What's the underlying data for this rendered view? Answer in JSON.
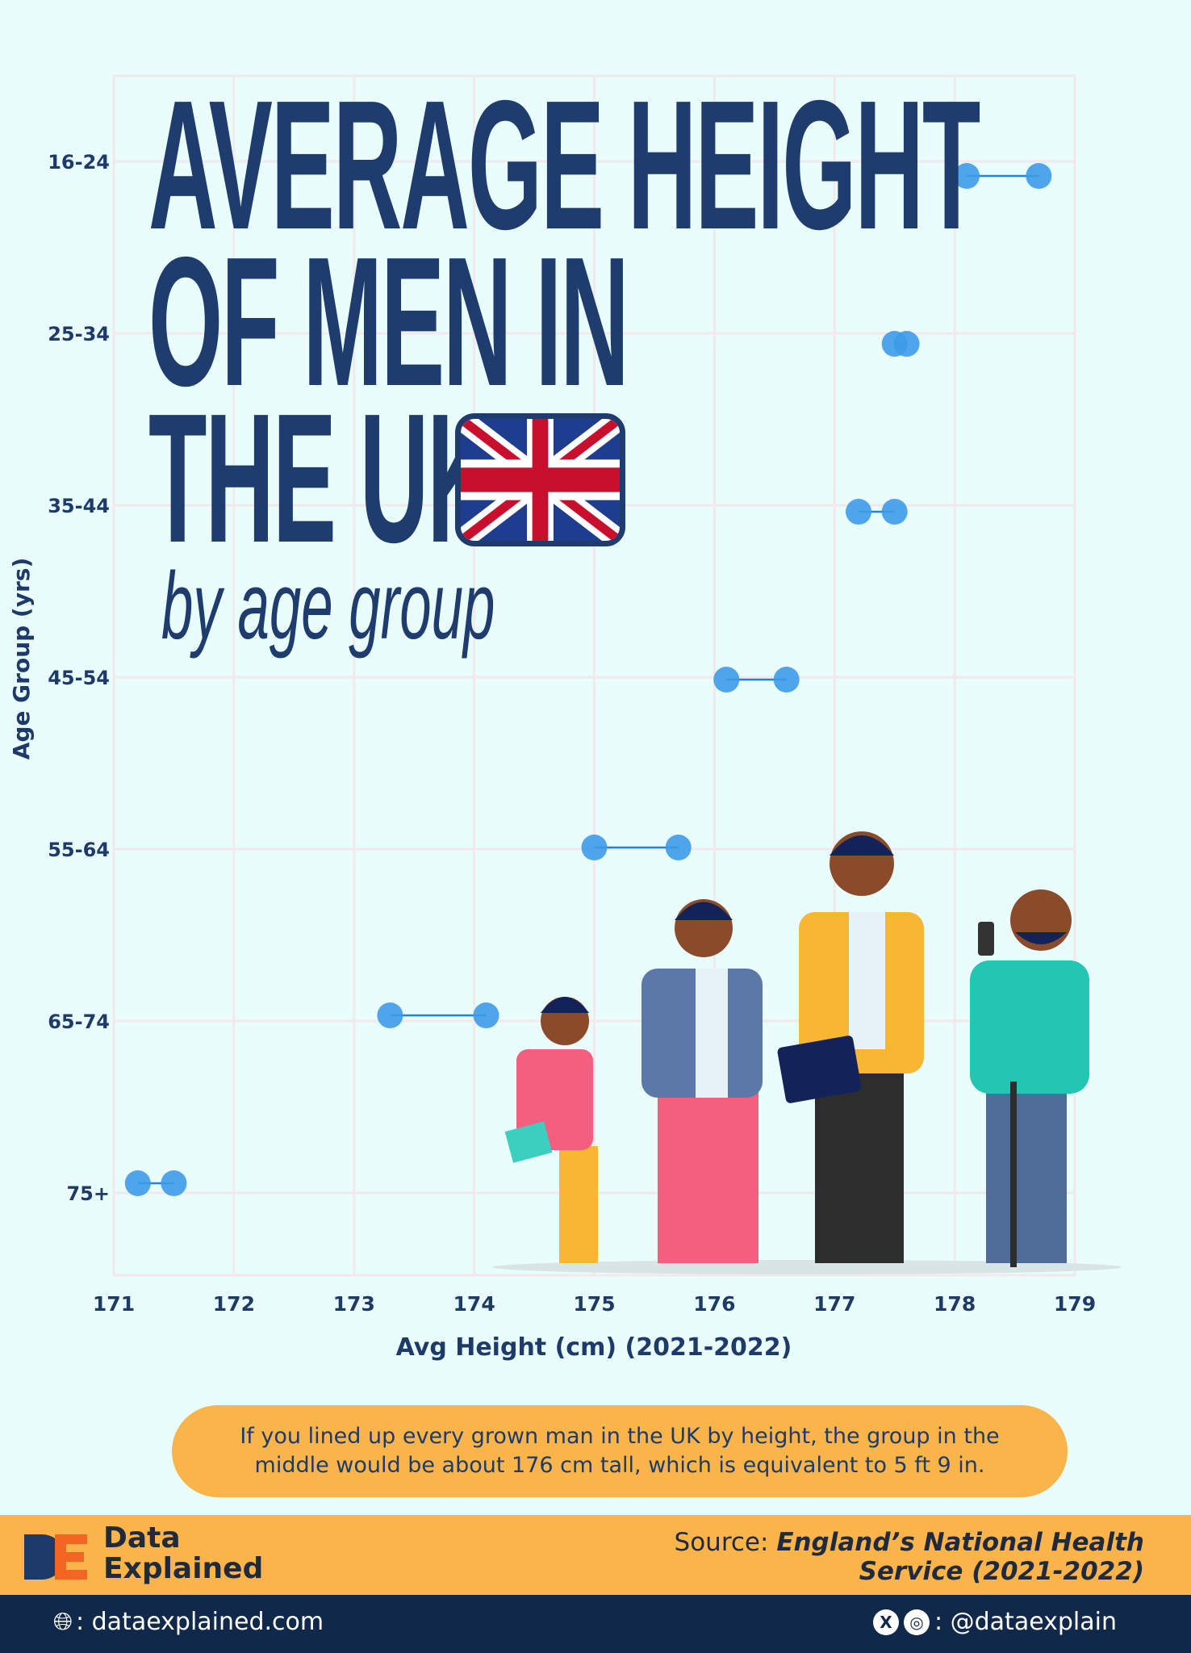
{
  "chart_data": {
    "type": "dumbbell",
    "title": "AVERAGE HEIGHT OF MEN IN THE UK",
    "subtitle": "by age group",
    "xlabel": "Avg Height (cm) (2021-2022)",
    "ylabel": "Age Group (yrs)",
    "xlim": [
      171,
      179
    ],
    "xticks": [
      "171",
      "172",
      "173",
      "174",
      "175",
      "176",
      "177",
      "178",
      "179"
    ],
    "grid": true,
    "color": "#3d9be9",
    "categories": [
      "16-24",
      "25-34",
      "35-44",
      "45-54",
      "55-64",
      "65-74",
      "75+"
    ],
    "low": [
      178.1,
      177.5,
      177.2,
      176.1,
      175.0,
      173.3,
      171.2
    ],
    "high": [
      178.7,
      177.6,
      177.5,
      176.6,
      175.7,
      174.1,
      171.5
    ]
  },
  "title_lines": [
    "AVERAGE HEIGHT",
    "OF MEN IN",
    "THE UK"
  ],
  "callout": "If you lined up every grown man in the UK by height, the group in the middle would be about 176 cm tall, which is equivalent to 5 ft 9 in.",
  "footer": {
    "brand_line1": "Data",
    "brand_line2": "Explained",
    "logo_text": "DE",
    "source_label": "Source:",
    "source_line1": "England’s National Health",
    "source_line2": "Service (2021-2022)",
    "website": ": dataexplained.com",
    "social_handle": ": @dataexplain",
    "x_icon": "X",
    "colors": {
      "orange": "#fbb44a",
      "navy": "#10284a",
      "accent": "#f26522"
    }
  }
}
